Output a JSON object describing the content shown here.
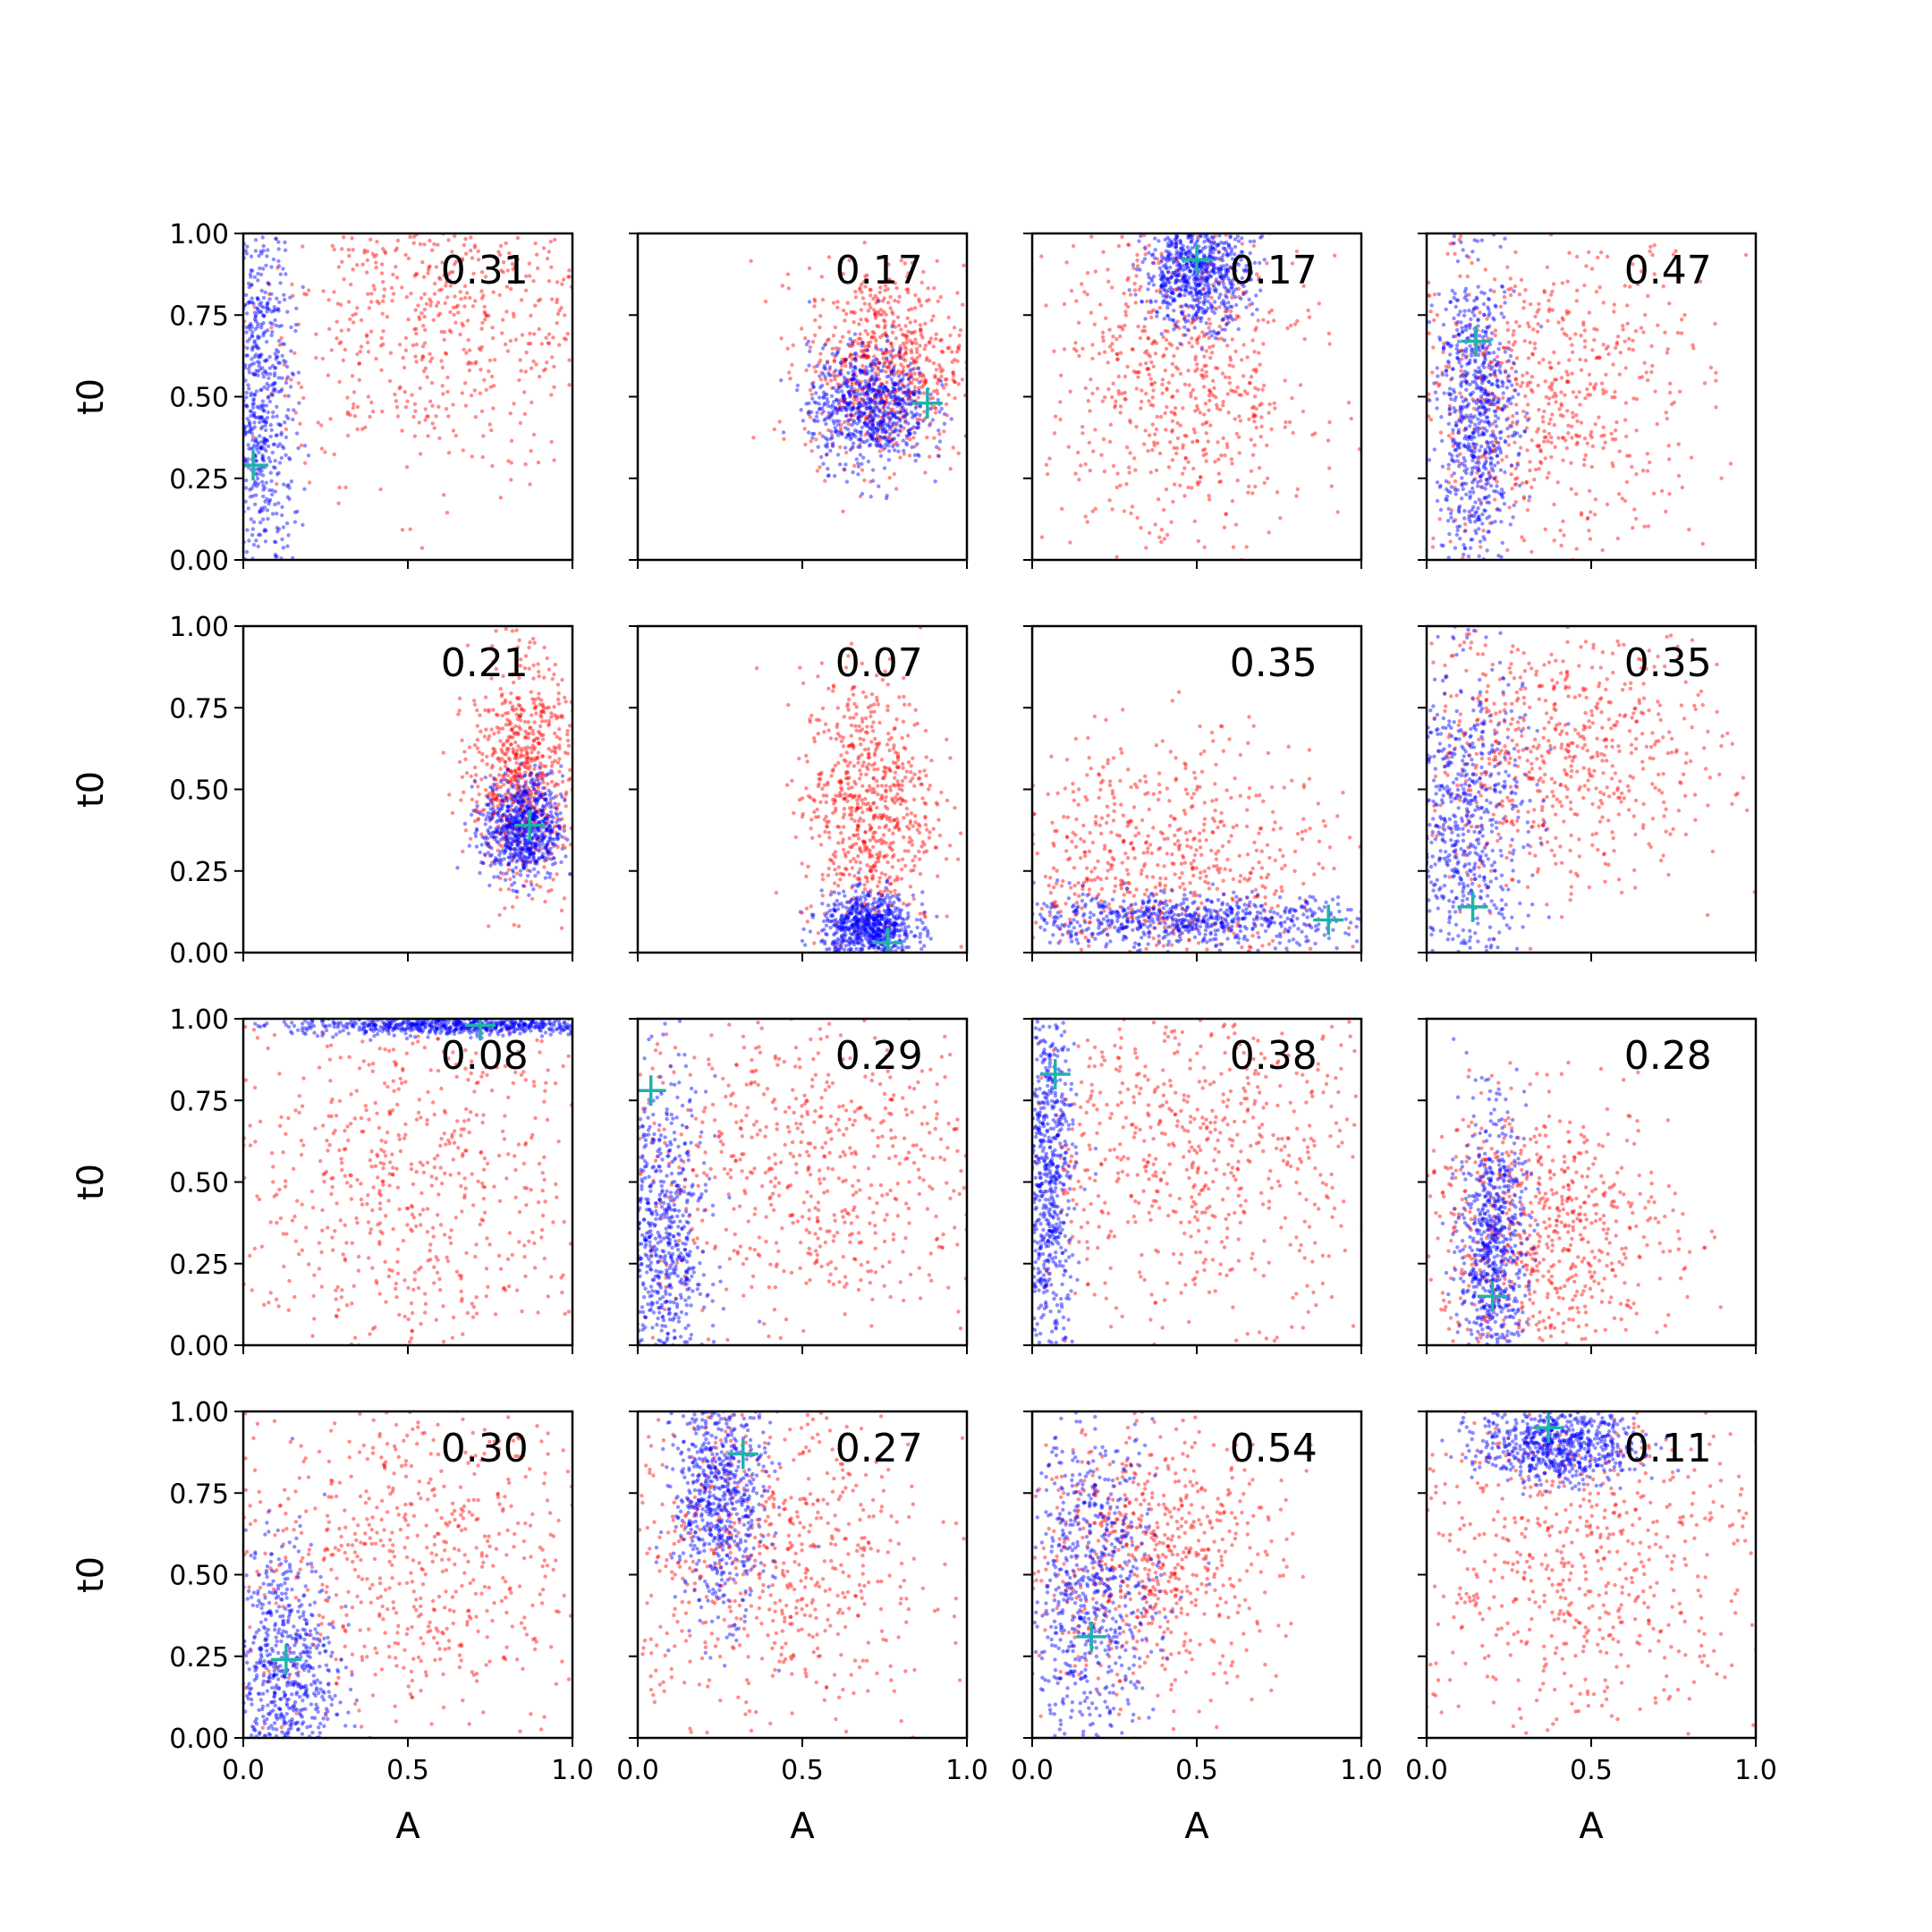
{
  "colors": {
    "prior_points": "#ff0000",
    "posterior_points": "#0000ff",
    "truth_marker": "#20b2aa",
    "axes": "#000000"
  },
  "chart_data": {
    "type": "scatter",
    "layout": "4x4 grid of scatter panels",
    "xlabel": "A",
    "ylabel": "t0",
    "xlim": [
      0,
      1
    ],
    "ylim": [
      0,
      1
    ],
    "xticks": [
      "0.0",
      "0.5",
      "1.0"
    ],
    "yticks": [
      "0.00",
      "0.25",
      "0.50",
      "0.75",
      "1.00"
    ],
    "grid": false,
    "legend": "none",
    "marker_truth": "cross",
    "panels": [
      {
        "label": "0.31",
        "truth": [
          0.03,
          0.29
        ],
        "posterior": {
          "center": [
            0.05,
            0.45
          ],
          "spread": [
            0.05,
            0.32
          ]
        },
        "prior": {
          "center": [
            0.6,
            0.75
          ],
          "spread": [
            0.3,
            0.25
          ]
        }
      },
      {
        "label": "0.17",
        "truth": [
          0.88,
          0.48
        ],
        "posterior": {
          "center": [
            0.7,
            0.47
          ],
          "spread": [
            0.09,
            0.09
          ]
        },
        "prior": {
          "center": [
            0.75,
            0.6
          ],
          "spread": [
            0.12,
            0.15
          ]
        }
      },
      {
        "label": "0.17",
        "truth": [
          0.5,
          0.92
        ],
        "posterior": {
          "center": [
            0.5,
            0.88
          ],
          "spread": [
            0.08,
            0.08
          ]
        },
        "prior": {
          "center": [
            0.45,
            0.55
          ],
          "spread": [
            0.2,
            0.28
          ]
        }
      },
      {
        "label": "0.47",
        "truth": [
          0.15,
          0.67
        ],
        "posterior": {
          "center": [
            0.15,
            0.45
          ],
          "spread": [
            0.06,
            0.22
          ]
        },
        "prior": {
          "center": [
            0.35,
            0.5
          ],
          "spread": [
            0.25,
            0.25
          ]
        }
      },
      {
        "label": "0.21",
        "truth": [
          0.87,
          0.39
        ],
        "posterior": {
          "center": [
            0.85,
            0.38
          ],
          "spread": [
            0.06,
            0.08
          ]
        },
        "prior": {
          "center": [
            0.85,
            0.55
          ],
          "spread": [
            0.08,
            0.17
          ]
        }
      },
      {
        "label": "0.07",
        "truth": [
          0.76,
          0.03
        ],
        "posterior": {
          "center": [
            0.7,
            0.08
          ],
          "spread": [
            0.07,
            0.05
          ]
        },
        "prior": {
          "center": [
            0.7,
            0.45
          ],
          "spread": [
            0.1,
            0.2
          ]
        }
      },
      {
        "label": "0.35",
        "truth": [
          0.9,
          0.1
        ],
        "posterior": {
          "center": [
            0.45,
            0.1
          ],
          "spread": [
            0.3,
            0.04
          ]
        },
        "prior": {
          "center": [
            0.4,
            0.25
          ],
          "spread": [
            0.25,
            0.2
          ]
        }
      },
      {
        "label": "0.35",
        "truth": [
          0.14,
          0.14
        ],
        "posterior": {
          "center": [
            0.1,
            0.4
          ],
          "spread": [
            0.1,
            0.25
          ]
        },
        "prior": {
          "center": [
            0.4,
            0.6
          ],
          "spread": [
            0.25,
            0.2
          ]
        }
      },
      {
        "label": "0.08",
        "truth": [
          0.72,
          0.98
        ],
        "posterior": {
          "center": [
            0.65,
            0.98
          ],
          "spread": [
            0.25,
            0.015
          ]
        },
        "prior": {
          "center": [
            0.5,
            0.5
          ],
          "spread": [
            0.3,
            0.3
          ]
        }
      },
      {
        "label": "0.29",
        "truth": [
          0.04,
          0.78
        ],
        "posterior": {
          "center": [
            0.07,
            0.3
          ],
          "spread": [
            0.07,
            0.25
          ]
        },
        "prior": {
          "center": [
            0.5,
            0.55
          ],
          "spread": [
            0.3,
            0.27
          ]
        }
      },
      {
        "label": "0.38",
        "truth": [
          0.07,
          0.83
        ],
        "posterior": {
          "center": [
            0.05,
            0.5
          ],
          "spread": [
            0.04,
            0.3
          ]
        },
        "prior": {
          "center": [
            0.5,
            0.6
          ],
          "spread": [
            0.3,
            0.25
          ]
        }
      },
      {
        "label": "0.28",
        "truth": [
          0.2,
          0.15
        ],
        "posterior": {
          "center": [
            0.2,
            0.3
          ],
          "spread": [
            0.05,
            0.2
          ]
        },
        "prior": {
          "center": [
            0.35,
            0.35
          ],
          "spread": [
            0.2,
            0.2
          ]
        }
      },
      {
        "label": "0.30",
        "truth": [
          0.13,
          0.24
        ],
        "posterior": {
          "center": [
            0.12,
            0.2
          ],
          "spread": [
            0.08,
            0.2
          ]
        },
        "prior": {
          "center": [
            0.5,
            0.55
          ],
          "spread": [
            0.3,
            0.28
          ]
        }
      },
      {
        "label": "0.27",
        "truth": [
          0.32,
          0.87
        ],
        "posterior": {
          "center": [
            0.25,
            0.75
          ],
          "spread": [
            0.07,
            0.18
          ]
        },
        "prior": {
          "center": [
            0.4,
            0.55
          ],
          "spread": [
            0.25,
            0.27
          ]
        }
      },
      {
        "label": "0.54",
        "truth": [
          0.18,
          0.31
        ],
        "posterior": {
          "center": [
            0.18,
            0.45
          ],
          "spread": [
            0.1,
            0.25
          ]
        },
        "prior": {
          "center": [
            0.35,
            0.55
          ],
          "spread": [
            0.2,
            0.2
          ]
        }
      },
      {
        "label": "0.11",
        "truth": [
          0.37,
          0.95
        ],
        "posterior": {
          "center": [
            0.4,
            0.9
          ],
          "spread": [
            0.12,
            0.06
          ]
        },
        "prior": {
          "center": [
            0.45,
            0.55
          ],
          "spread": [
            0.3,
            0.28
          ]
        }
      }
    ]
  }
}
